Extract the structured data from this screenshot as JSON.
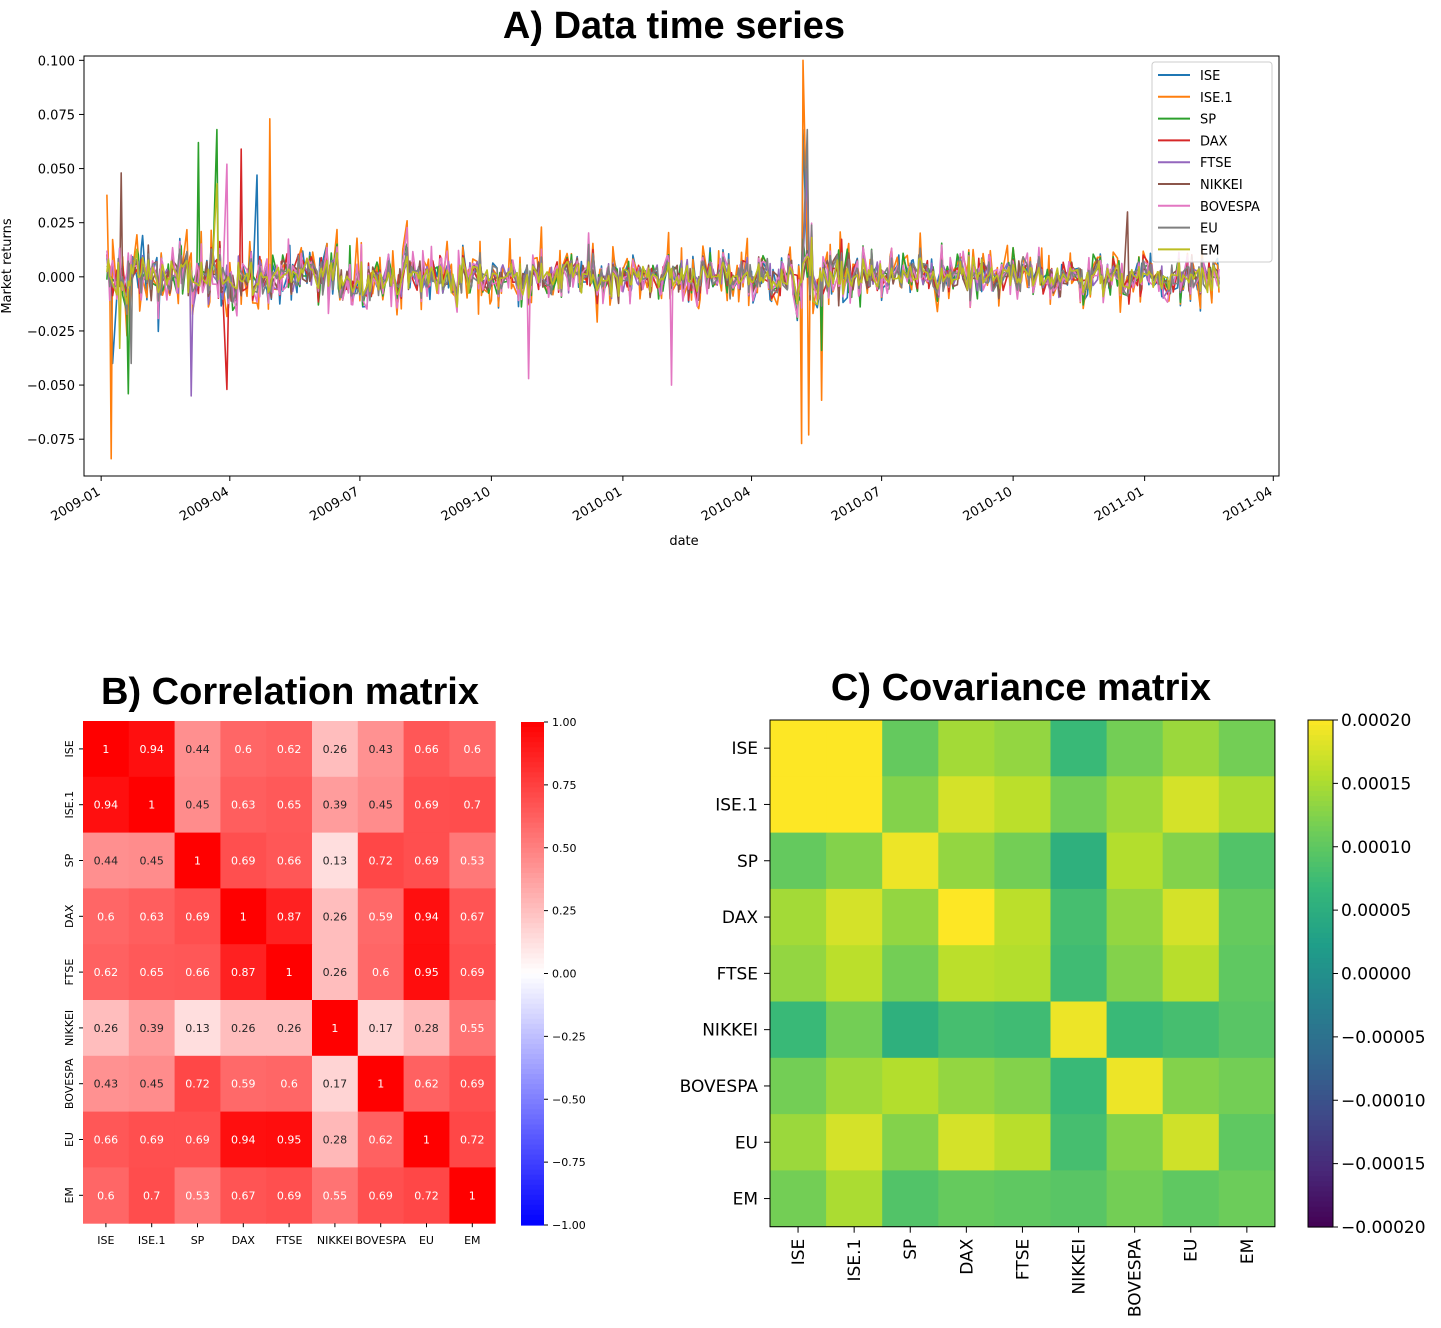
{
  "chart_data": [
    {
      "type": "line",
      "title": "A) Data time series",
      "xlabel": "date",
      "ylabel": "Market returns",
      "x_ticks": [
        "2009-01",
        "2009-04",
        "2009-07",
        "2009-10",
        "2010-01",
        "2010-04",
        "2010-07",
        "2010-10",
        "2011-01",
        "2011-04"
      ],
      "y_ticks": [
        "0.100",
        "0.075",
        "0.050",
        "0.025",
        "0.000",
        "−0.025",
        "−0.050",
        "−0.075"
      ],
      "ylim": [
        -0.092,
        0.102
      ],
      "xlim": [
        "2008-12-20",
        "2011-04-05"
      ],
      "date_range": [
        "2009-01-05",
        "2011-02-22"
      ],
      "legend_position": "top-right",
      "series": [
        {
          "name": "ISE",
          "color": "#1f77b4",
          "amplitude": 0.021,
          "extremes": [
            [
              "2009-01-10",
              -0.04
            ],
            [
              "2009-04-20",
              0.047
            ],
            [
              "2010-05-07",
              0.068
            ]
          ]
        },
        {
          "name": "ISE.1",
          "color": "#ff7f0e",
          "amplitude": 0.028,
          "extremes": [
            [
              "2009-01-08",
              -0.084
            ],
            [
              "2009-01-05",
              0.038
            ],
            [
              "2009-04-29",
              0.073
            ],
            [
              "2010-05-08",
              0.1
            ],
            [
              "2010-05-06",
              -0.077
            ],
            [
              "2010-05-11",
              -0.073
            ],
            [
              "2010-05-20",
              -0.057
            ]
          ]
        },
        {
          "name": "SP",
          "color": "#2ca02c",
          "amplitude": 0.019,
          "extremes": [
            [
              "2009-03-23",
              0.068
            ],
            [
              "2009-03-10",
              0.062
            ],
            [
              "2009-01-20",
              -0.054
            ],
            [
              "2010-05-20",
              -0.034
            ]
          ]
        },
        {
          "name": "DAX",
          "color": "#d62728",
          "amplitude": 0.018,
          "extremes": [
            [
              "2009-03-30",
              -0.052
            ],
            [
              "2009-04-09",
              0.059
            ],
            [
              "2010-05-10",
              0.052
            ]
          ]
        },
        {
          "name": "FTSE",
          "color": "#9467bd",
          "amplitude": 0.016,
          "extremes": [
            [
              "2009-03-05",
              -0.055
            ],
            [
              "2010-05-10",
              0.05
            ]
          ]
        },
        {
          "name": "NIKKEI",
          "color": "#8c564b",
          "amplitude": 0.017,
          "extremes": [
            [
              "2009-01-15",
              0.048
            ],
            [
              "2010-12-20",
              0.03
            ]
          ]
        },
        {
          "name": "BOVESPA",
          "color": "#e377c2",
          "amplitude": 0.022,
          "extremes": [
            [
              "2009-03-30",
              0.052
            ],
            [
              "2009-10-27",
              -0.047
            ],
            [
              "2010-02-04",
              -0.05
            ]
          ]
        },
        {
          "name": "EU",
          "color": "#7f7f7f",
          "amplitude": 0.017,
          "extremes": [
            [
              "2010-05-10",
              0.068
            ],
            [
              "2009-01-22",
              -0.04
            ]
          ]
        },
        {
          "name": "EM",
          "color": "#bcbd22",
          "amplitude": 0.014,
          "extremes": [
            [
              "2009-03-23",
              0.043
            ],
            [
              "2009-01-14",
              -0.033
            ]
          ]
        }
      ]
    },
    {
      "type": "heatmap",
      "title": "B) Correlation matrix",
      "labels": [
        "ISE",
        "ISE.1",
        "SP",
        "DAX",
        "FTSE",
        "NIKKEI",
        "BOVESPA",
        "EU",
        "EM"
      ],
      "colormap": "bwr",
      "vmin": -1.0,
      "vmax": 1.0,
      "colorbar_ticks": [
        "1.00",
        "0.75",
        "0.50",
        "0.25",
        "0.00",
        "−0.25",
        "−0.50",
        "−0.75",
        "−1.00"
      ],
      "values": [
        [
          "1",
          "0.94",
          "0.44",
          "0.6",
          "0.62",
          "0.26",
          "0.43",
          "0.66",
          "0.6"
        ],
        [
          "0.94",
          "1",
          "0.45",
          "0.63",
          "0.65",
          "0.39",
          "0.45",
          "0.69",
          "0.7"
        ],
        [
          "0.44",
          "0.45",
          "1",
          "0.69",
          "0.66",
          "0.13",
          "0.72",
          "0.69",
          "0.53"
        ],
        [
          "0.6",
          "0.63",
          "0.69",
          "1",
          "0.87",
          "0.26",
          "0.59",
          "0.94",
          "0.67"
        ],
        [
          "0.62",
          "0.65",
          "0.66",
          "0.87",
          "1",
          "0.26",
          "0.6",
          "0.95",
          "0.69"
        ],
        [
          "0.26",
          "0.39",
          "0.13",
          "0.26",
          "0.26",
          "1",
          "0.17",
          "0.28",
          "0.55"
        ],
        [
          "0.43",
          "0.45",
          "0.72",
          "0.59",
          "0.6",
          "0.17",
          "1",
          "0.62",
          "0.69"
        ],
        [
          "0.66",
          "0.69",
          "0.69",
          "0.94",
          "0.95",
          "0.28",
          "0.62",
          "1",
          "0.72"
        ],
        [
          "0.6",
          "0.7",
          "0.53",
          "0.67",
          "0.69",
          "0.55",
          "0.69",
          "0.72",
          "1"
        ]
      ]
    },
    {
      "type": "heatmap",
      "title": "C) Covariance matrix",
      "labels": [
        "ISE",
        "ISE.1",
        "SP",
        "DAX",
        "FTSE",
        "NIKKEI",
        "BOVESPA",
        "EU",
        "EM"
      ],
      "colormap": "viridis",
      "vmin": -0.0002,
      "vmax": 0.0002,
      "colorbar_ticks": [
        "0.00020",
        "0.00015",
        "0.00010",
        "0.00005",
        "0.00000",
        "−0.00005",
        "−0.00010",
        "−0.00015",
        "−0.00020"
      ],
      "values": [
        [
          0.00021,
          0.00022,
          0.000104,
          0.000145,
          0.000135,
          7e-05,
          0.000115,
          0.00014,
          0.000115
        ],
        [
          0.00022,
          0.00023,
          0.000125,
          0.000175,
          0.00016,
          0.000115,
          0.000142,
          0.000175,
          0.00015
        ],
        [
          0.000104,
          0.000125,
          0.00019,
          0.000135,
          0.000115,
          5.5e-05,
          0.000155,
          0.000125,
          9e-05
        ],
        [
          0.000145,
          0.000175,
          0.000135,
          0.00021,
          0.00016,
          8e-05,
          0.000135,
          0.000175,
          0.000105
        ],
        [
          0.000135,
          0.00016,
          0.000115,
          0.00016,
          0.000155,
          7.5e-05,
          0.000125,
          0.000158,
          0.0001
        ],
        [
          7e-05,
          0.000115,
          5.5e-05,
          8e-05,
          7.5e-05,
          0.00019,
          7e-05,
          8e-05,
          9.5e-05
        ],
        [
          0.000115,
          0.000142,
          0.000155,
          0.000135,
          0.000125,
          7e-05,
          0.00019,
          0.000125,
          0.000115
        ],
        [
          0.00014,
          0.000175,
          0.000125,
          0.000175,
          0.000158,
          8e-05,
          0.000125,
          0.000172,
          0.0001
        ],
        [
          0.000115,
          0.00015,
          9e-05,
          0.000105,
          0.0001,
          9.5e-05,
          0.000115,
          0.0001,
          0.00011
        ]
      ]
    }
  ]
}
